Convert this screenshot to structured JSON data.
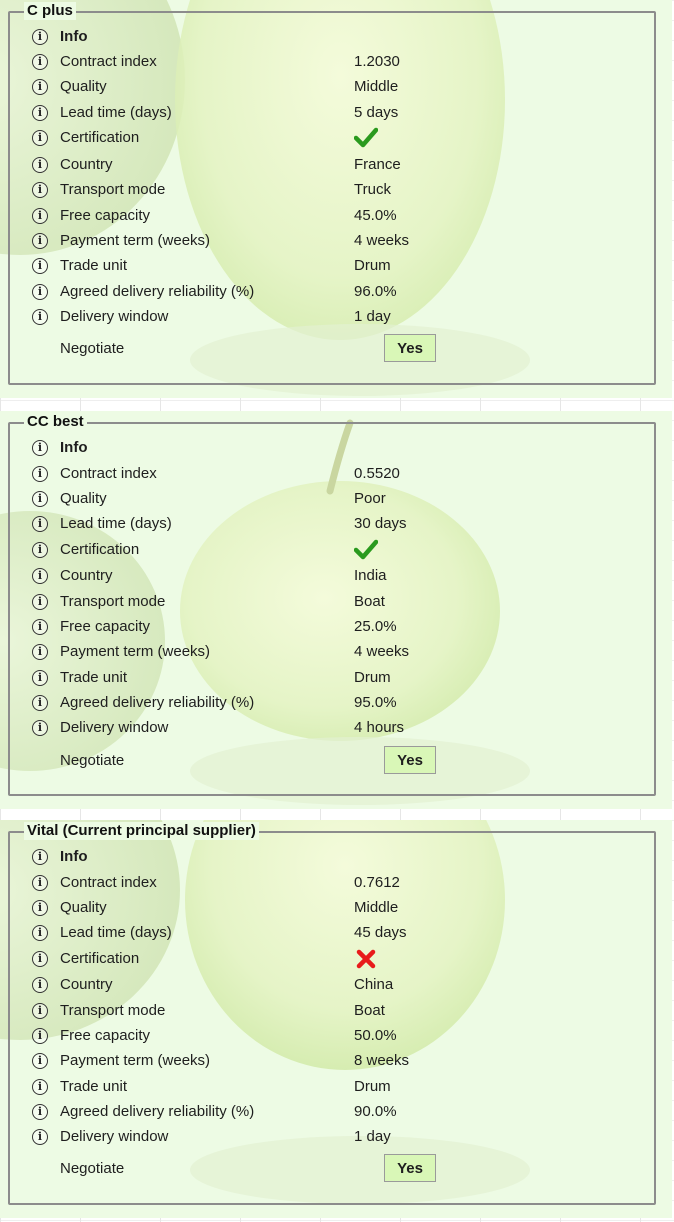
{
  "labels": {
    "info": "Info",
    "negotiate": "Negotiate",
    "contract_index": "Contract index",
    "quality": "Quality",
    "lead_time": "Lead time (days)",
    "certification": "Certification",
    "country": "Country",
    "transport_mode": "Transport mode",
    "free_capacity": "Free capacity",
    "payment_term": "Payment term (weeks)",
    "trade_unit": "Trade unit",
    "delivery_reliability": "Agreed delivery reliability (%)",
    "delivery_window": "Delivery window"
  },
  "suppliers": [
    {
      "name": "C plus",
      "contract_index": "1.2030",
      "quality": "Middle",
      "lead_time": "5 days",
      "certification": "check-icon",
      "country": "France",
      "transport_mode": "Truck",
      "free_capacity": "45.0%",
      "payment_term": "4 weeks",
      "trade_unit": "Drum",
      "delivery_reliability": "96.0%",
      "delivery_window": "1 day",
      "negotiate": "Yes"
    },
    {
      "name": "CC best",
      "contract_index": "0.5520",
      "quality": "Poor",
      "lead_time": "30 days",
      "certification": "check-icon",
      "country": "India",
      "transport_mode": "Boat",
      "free_capacity": "25.0%",
      "payment_term": "4 weeks",
      "trade_unit": "Drum",
      "delivery_reliability": "95.0%",
      "delivery_window": "4 hours",
      "negotiate": "Yes"
    },
    {
      "name": "Vital (Current principal supplier)",
      "contract_index": "0.7612",
      "quality": "Middle",
      "lead_time": "45 days",
      "certification": "cross-icon",
      "country": "China",
      "transport_mode": "Boat",
      "free_capacity": "50.0%",
      "payment_term": "8 weeks",
      "trade_unit": "Drum",
      "delivery_reliability": "90.0%",
      "delivery_window": "1 day",
      "negotiate": "Yes"
    }
  ],
  "colors": {
    "panel_background": "#edfbe4",
    "check": "#2a9a1e",
    "cross": "#e81b1b",
    "button_background": "#d9f7b7"
  }
}
